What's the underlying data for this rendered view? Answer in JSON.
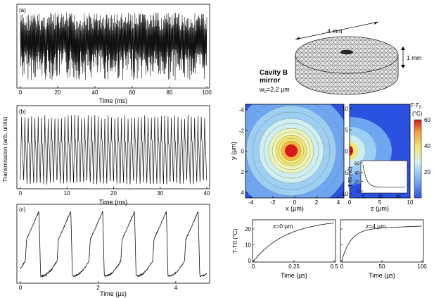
{
  "panel_a": {
    "label": "(a)",
    "xlabel": "Time (ms)",
    "xticks": [
      "0",
      "20",
      "40",
      "60",
      "80",
      "100"
    ],
    "xrange": [
      0,
      100
    ]
  },
  "panel_b": {
    "label": "(b)",
    "xlabel": "Time (ms)",
    "xticks": [
      "0",
      "10",
      "20",
      "30",
      "40"
    ],
    "xrange": [
      0,
      40
    ]
  },
  "panel_c": {
    "label": "(c)",
    "xlabel": "Time (µs)",
    "xticks": [
      "0",
      "2",
      "4"
    ],
    "xrange": [
      0,
      4.8
    ]
  },
  "shared_ylabel": "Transmission (arb. units)",
  "mirror": {
    "width_label": "4 mm",
    "height_label": "1 mm",
    "title_line1": "Cavity B",
    "title_line2": "mirror",
    "waist_label": "w",
    "waist_sub": "0",
    "waist_value": "=2.2 µm"
  },
  "heatmap_xy": {
    "xlabel": "x (µm)",
    "ylabel": "y (µm)",
    "xticks": [
      "-4",
      "-2",
      "0",
      "2",
      "4"
    ],
    "yticks": [
      "-4",
      "-2",
      "0",
      "2",
      "4"
    ]
  },
  "heatmap_zx": {
    "xlabel": "z (µm)",
    "yticks": [
      "10",
      "5",
      "0",
      "-5",
      "-10"
    ],
    "xticks": [
      "0",
      "5",
      "10"
    ]
  },
  "colorbar": {
    "title_line1": "T-T",
    "title_sub": "0",
    "title_line2": "(°C)",
    "ticks": [
      "60",
      "40",
      "20"
    ],
    "range": [
      0,
      60
    ]
  },
  "inset": {
    "ylabel": "T-T0 (°C)",
    "yticks": [
      "60",
      "40",
      "20",
      "0"
    ],
    "xticks": [
      "0",
      "20",
      "40"
    ]
  },
  "bottom_left": {
    "annotation": "z=0 µm",
    "ylabel": "T-T0 (°C)",
    "yticks": [
      "20",
      "10",
      "0"
    ],
    "xticks": [
      "0.",
      "0.25",
      "0.5"
    ],
    "xlabel": "Time (µs)"
  },
  "bottom_right": {
    "annotation": "z=4 µm",
    "yticks": [
      "20",
      "10",
      "0"
    ],
    "xticks": [
      "0",
      "50",
      "100"
    ],
    "xlabel": "Time (µs)"
  },
  "colors": {
    "trace": "#111111",
    "hot": "#d7191c",
    "cold": "#2b52e0"
  }
}
